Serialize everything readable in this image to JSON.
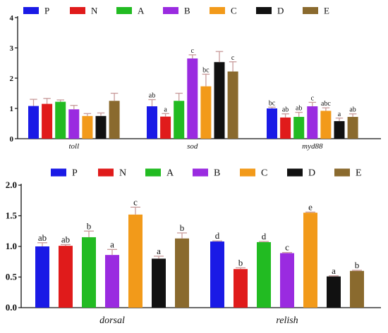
{
  "colors": {
    "P": "#1a1ae6",
    "N": "#e01b1b",
    "A": "#22bb22",
    "B": "#9a2be0",
    "C": "#f29a1a",
    "D": "#111111",
    "E": "#8a6a2e",
    "error_bar": "#c89a9a"
  },
  "chart_data": [
    {
      "type": "bar",
      "title": "",
      "xlabel": "",
      "ylabel": "",
      "ylim": [
        0,
        4
      ],
      "yticks": [
        "0",
        "1",
        "2",
        "3",
        "4"
      ],
      "legend": {
        "position": "top",
        "entries": [
          "P",
          "N",
          "A",
          "B",
          "C",
          "D",
          "E"
        ]
      },
      "categories": [
        "toll",
        "sod",
        "myd88"
      ],
      "series": [
        {
          "name": "P",
          "values": [
            1.08,
            1.07,
            1.0
          ],
          "errors": [
            0.22,
            0.22,
            0.04
          ],
          "letters": [
            "",
            "ab",
            "bc"
          ]
        },
        {
          "name": "N",
          "values": [
            1.15,
            0.73,
            0.7
          ],
          "errors": [
            0.18,
            0.1,
            0.12
          ],
          "letters": [
            "",
            "a",
            "ab"
          ]
        },
        {
          "name": "A",
          "values": [
            1.22,
            1.25,
            0.72
          ],
          "errors": [
            0.06,
            0.25,
            0.15
          ],
          "letters": [
            "",
            "",
            "ab"
          ]
        },
        {
          "name": "B",
          "values": [
            0.97,
            2.65,
            1.07
          ],
          "errors": [
            0.13,
            0.12,
            0.13
          ],
          "letters": [
            "",
            "c",
            "c"
          ]
        },
        {
          "name": "C",
          "values": [
            0.75,
            1.73,
            0.92
          ],
          "errors": [
            0.08,
            0.4,
            0.1
          ],
          "letters": [
            "",
            "bc",
            "abc"
          ]
        },
        {
          "name": "D",
          "values": [
            0.75,
            2.53,
            0.58
          ],
          "errors": [
            0.1,
            0.35,
            0.1
          ],
          "letters": [
            "",
            "",
            "a"
          ]
        },
        {
          "name": "E",
          "values": [
            1.25,
            2.22,
            0.72
          ],
          "errors": [
            0.25,
            0.32,
            0.1
          ],
          "letters": [
            "",
            "c",
            "ab"
          ]
        }
      ]
    },
    {
      "type": "bar",
      "title": "",
      "xlabel": "",
      "ylabel": "",
      "ylim": [
        0,
        2.0
      ],
      "yticks": [
        "0.0",
        "0.5",
        "1.0",
        "1.5",
        "2.0"
      ],
      "legend": {
        "position": "top",
        "entries": [
          "P",
          "N",
          "A",
          "B",
          "C",
          "D",
          "E"
        ]
      },
      "categories": [
        "dorsal",
        "relish"
      ],
      "series": [
        {
          "name": "P",
          "values": [
            1.0,
            1.08
          ],
          "errors": [
            0.06,
            0.01
          ],
          "letters": [
            "ab",
            "d"
          ]
        },
        {
          "name": "N",
          "values": [
            1.01,
            0.63
          ],
          "errors": [
            0.02,
            0.02
          ],
          "letters": [
            "ab",
            "b"
          ]
        },
        {
          "name": "A",
          "values": [
            1.15,
            1.07
          ],
          "errors": [
            0.1,
            0.01
          ],
          "letters": [
            "b",
            "d"
          ]
        },
        {
          "name": "B",
          "values": [
            0.86,
            0.89
          ],
          "errors": [
            0.09,
            0.01
          ],
          "letters": [
            "a",
            "c"
          ]
        },
        {
          "name": "C",
          "values": [
            1.52,
            1.55
          ],
          "errors": [
            0.12,
            0.01
          ],
          "letters": [
            "c",
            "e"
          ]
        },
        {
          "name": "D",
          "values": [
            0.8,
            0.51
          ],
          "errors": [
            0.04,
            0.01
          ],
          "letters": [
            "a",
            "a"
          ]
        },
        {
          "name": "E",
          "values": [
            1.13,
            0.6
          ],
          "errors": [
            0.09,
            0.01
          ],
          "letters": [
            "b",
            "b"
          ]
        }
      ]
    }
  ]
}
